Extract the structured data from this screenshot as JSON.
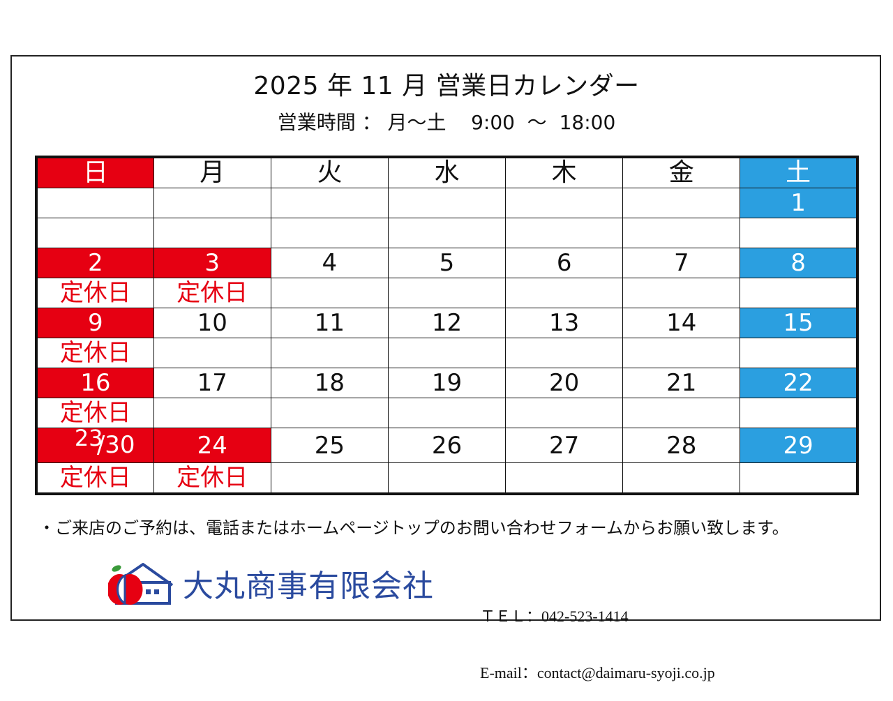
{
  "title": "2025 年 11 月  営業日カレンダー",
  "hours": "営業時間 ： 月～土    9:00  ～  18:00",
  "weekdays": [
    "日",
    "月",
    "火",
    "水",
    "木",
    "金",
    "土"
  ],
  "weeks": [
    {
      "days": [
        "",
        "",
        "",
        "",
        "",
        "",
        "1"
      ],
      "notes": [
        "",
        "",
        "",
        "",
        "",
        "",
        ""
      ]
    },
    {
      "days": [
        "2",
        "3",
        "4",
        "5",
        "6",
        "7",
        "8"
      ],
      "notes": [
        "定休日",
        "定休日",
        "",
        "",
        "",
        "",
        ""
      ]
    },
    {
      "days": [
        "9",
        "10",
        "11",
        "12",
        "13",
        "14",
        "15"
      ],
      "notes": [
        "定休日",
        "",
        "",
        "",
        "",
        "",
        ""
      ]
    },
    {
      "days": [
        "16",
        "17",
        "18",
        "19",
        "20",
        "21",
        "22"
      ],
      "notes": [
        "定休日",
        "",
        "",
        "",
        "",
        "",
        ""
      ]
    },
    {
      "days": [
        "23/30",
        "24",
        "25",
        "26",
        "27",
        "28",
        "29"
      ],
      "notes": [
        "定休日",
        "定休日",
        "",
        "",
        "",
        "",
        ""
      ]
    }
  ],
  "split_date": {
    "first": "23",
    "second": "/30"
  },
  "note": "・ご来店のご予約は、電話またはホームページトップのお問い合わせフォームからお願い致します。",
  "company": "大丸商事有限会社",
  "contact": {
    "tel": "ＴＥＬ：042-523-1414",
    "email": "E-mail：contact@daimaru-syoji.co.jp"
  },
  "colors": {
    "closed": "#e60012",
    "saturday": "#2b9fe0",
    "brand": "#2a4a9e",
    "logo_green": "#3a9a3a"
  },
  "icons": {
    "logo": "house-with-apple-logo-icon"
  }
}
